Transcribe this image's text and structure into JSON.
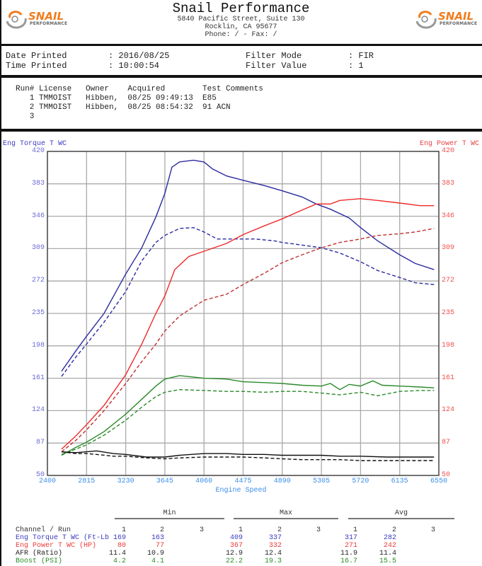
{
  "header": {
    "company": "Snail Performance",
    "address_line1": "5840 Pacific Street, Suite 130",
    "address_line2": "Rocklin, CA  95677",
    "phone_line": "Phone:  /  - Fax:  /",
    "logo_text": "SNAIL",
    "logo_sub": "PERFORMANCE"
  },
  "print_info": {
    "date_label": "Date Printed",
    "date_value": ": 2016/08/25",
    "time_label": "Time Printed",
    "time_value": ": 10:00:54",
    "filter_mode_label": "Filter Mode",
    "filter_mode_value": ": FIR",
    "filter_value_label": "Filter Value",
    "filter_value_value": ": 1"
  },
  "runs": {
    "header": "Run# License   Owner    Acquired        Test Comments",
    "rows": [
      "   1 TMMOIST   Hibben,  08/25 09:49:13  E85",
      "   2 TMMOIST   Hibben,  08/25 08:54:32  91 ACN",
      "   3"
    ]
  },
  "chart_data": {
    "type": "line",
    "title": "",
    "xlabel": "Engine Speed",
    "ylabel_left": "Eng Torque T WC",
    "ylabel_right": "Eng Power T WC",
    "xlim": [
      2400,
      6550
    ],
    "ylim": [
      50,
      420
    ],
    "x_ticks": [
      "2400",
      "2815",
      "3230",
      "3645",
      "4060",
      "4475",
      "4890",
      "5305",
      "5720",
      "6135",
      "6550"
    ],
    "y_ticks": [
      "420",
      "383",
      "346",
      "309",
      "272",
      "235",
      "198",
      "161",
      "124",
      "87",
      "50"
    ],
    "grid": true,
    "colors": {
      "torque": "#2b2ba0",
      "power": "#ee2a2a",
      "boost": "#2a8a2a",
      "afr": "#111111"
    },
    "series": [
      {
        "name": "Eng Torque T WC Run 1",
        "color": "#2b2ba0",
        "dash": false,
        "points": [
          [
            2550,
            169
          ],
          [
            2700,
            192
          ],
          [
            2815,
            209
          ],
          [
            3000,
            235
          ],
          [
            3230,
            280
          ],
          [
            3400,
            310
          ],
          [
            3550,
            345
          ],
          [
            3645,
            372
          ],
          [
            3720,
            402
          ],
          [
            3800,
            408
          ],
          [
            3950,
            410
          ],
          [
            4060,
            408
          ],
          [
            4150,
            400
          ],
          [
            4300,
            392
          ],
          [
            4475,
            387
          ],
          [
            4700,
            381
          ],
          [
            4890,
            375
          ],
          [
            5100,
            368
          ],
          [
            5250,
            360
          ],
          [
            5400,
            354
          ],
          [
            5600,
            344
          ],
          [
            5720,
            333
          ],
          [
            5900,
            318
          ],
          [
            6135,
            302
          ],
          [
            6300,
            292
          ],
          [
            6500,
            285
          ]
        ]
      },
      {
        "name": "Eng Torque T WC Run 2",
        "color": "#2b2ba0",
        "dash": true,
        "points": [
          [
            2550,
            163
          ],
          [
            2700,
            185
          ],
          [
            2815,
            200
          ],
          [
            3000,
            225
          ],
          [
            3230,
            260
          ],
          [
            3400,
            295
          ],
          [
            3550,
            316
          ],
          [
            3645,
            324
          ],
          [
            3800,
            332
          ],
          [
            3950,
            333
          ],
          [
            4060,
            328
          ],
          [
            4200,
            320
          ],
          [
            4400,
            320
          ],
          [
            4600,
            320
          ],
          [
            4800,
            318
          ],
          [
            4890,
            316
          ],
          [
            5100,
            313
          ],
          [
            5305,
            310
          ],
          [
            5500,
            304
          ],
          [
            5720,
            294
          ],
          [
            5900,
            284
          ],
          [
            6135,
            276
          ],
          [
            6300,
            270
          ],
          [
            6500,
            268
          ]
        ]
      },
      {
        "name": "Eng Power T WC Run 1",
        "color": "#ee2a2a",
        "dash": false,
        "points": [
          [
            2550,
            80
          ],
          [
            2700,
            95
          ],
          [
            2815,
            108
          ],
          [
            3000,
            130
          ],
          [
            3230,
            165
          ],
          [
            3400,
            200
          ],
          [
            3550,
            235
          ],
          [
            3645,
            255
          ],
          [
            3750,
            285
          ],
          [
            3900,
            300
          ],
          [
            4060,
            306
          ],
          [
            4300,
            315
          ],
          [
            4475,
            325
          ],
          [
            4700,
            335
          ],
          [
            4890,
            343
          ],
          [
            5100,
            353
          ],
          [
            5250,
            360
          ],
          [
            5400,
            360
          ],
          [
            5500,
            364
          ],
          [
            5720,
            366
          ],
          [
            5900,
            364
          ],
          [
            6135,
            361
          ],
          [
            6350,
            358
          ],
          [
            6500,
            358
          ]
        ]
      },
      {
        "name": "Eng Power T WC Run 2",
        "color": "#c03030",
        "dash": true,
        "points": [
          [
            2550,
            77
          ],
          [
            2700,
            90
          ],
          [
            2815,
            102
          ],
          [
            3000,
            124
          ],
          [
            3230,
            155
          ],
          [
            3400,
            180
          ],
          [
            3550,
            200
          ],
          [
            3645,
            215
          ],
          [
            3800,
            232
          ],
          [
            4060,
            250
          ],
          [
            4300,
            257
          ],
          [
            4475,
            268
          ],
          [
            4700,
            281
          ],
          [
            4890,
            293
          ],
          [
            5100,
            302
          ],
          [
            5305,
            310
          ],
          [
            5500,
            316
          ],
          [
            5720,
            320
          ],
          [
            5900,
            324
          ],
          [
            6135,
            326
          ],
          [
            6300,
            328
          ],
          [
            6500,
            332
          ]
        ]
      },
      {
        "name": "Boost Run 1",
        "color": "#2a8a2a",
        "dash": false,
        "points": [
          [
            2550,
            73
          ],
          [
            2700,
            82
          ],
          [
            2815,
            88
          ],
          [
            3000,
            100
          ],
          [
            3230,
            120
          ],
          [
            3400,
            137
          ],
          [
            3550,
            152
          ],
          [
            3645,
            160
          ],
          [
            3800,
            164
          ],
          [
            4060,
            161
          ],
          [
            4300,
            160
          ],
          [
            4475,
            157
          ],
          [
            4700,
            156
          ],
          [
            4890,
            155
          ],
          [
            5100,
            153
          ],
          [
            5305,
            152
          ],
          [
            5400,
            155
          ],
          [
            5500,
            148
          ],
          [
            5600,
            154
          ],
          [
            5720,
            152
          ],
          [
            5850,
            158
          ],
          [
            5950,
            153
          ],
          [
            6135,
            152
          ],
          [
            6350,
            151
          ],
          [
            6500,
            150
          ]
        ]
      },
      {
        "name": "Boost Run 2",
        "color": "#2a8a2a",
        "dash": true,
        "points": [
          [
            2550,
            74
          ],
          [
            2700,
            80
          ],
          [
            2815,
            85
          ],
          [
            3000,
            96
          ],
          [
            3230,
            113
          ],
          [
            3400,
            128
          ],
          [
            3550,
            140
          ],
          [
            3645,
            145
          ],
          [
            3800,
            148
          ],
          [
            4060,
            147
          ],
          [
            4300,
            146
          ],
          [
            4475,
            146
          ],
          [
            4700,
            145
          ],
          [
            4890,
            146
          ],
          [
            5100,
            146
          ],
          [
            5305,
            144
          ],
          [
            5500,
            142
          ],
          [
            5720,
            145
          ],
          [
            5900,
            141
          ],
          [
            6135,
            146
          ],
          [
            6350,
            147
          ],
          [
            6500,
            147
          ]
        ]
      },
      {
        "name": "AFR Run 1",
        "color": "#111111",
        "dash": false,
        "points": [
          [
            2550,
            77
          ],
          [
            2700,
            76
          ],
          [
            2815,
            77
          ],
          [
            2920,
            78
          ],
          [
            3100,
            75
          ],
          [
            3230,
            74
          ],
          [
            3450,
            71
          ],
          [
            3645,
            71
          ],
          [
            3800,
            73
          ],
          [
            4060,
            75
          ],
          [
            4300,
            75
          ],
          [
            4475,
            74
          ],
          [
            4700,
            74
          ],
          [
            4890,
            73
          ],
          [
            5100,
            73
          ],
          [
            5305,
            73
          ],
          [
            5500,
            72
          ],
          [
            5720,
            72
          ],
          [
            6000,
            71
          ],
          [
            6300,
            71
          ],
          [
            6500,
            71
          ]
        ]
      },
      {
        "name": "AFR Run 2",
        "color": "#111111",
        "dash": true,
        "points": [
          [
            2550,
            77
          ],
          [
            2700,
            75
          ],
          [
            2815,
            75
          ],
          [
            2920,
            74
          ],
          [
            3100,
            72
          ],
          [
            3230,
            72
          ],
          [
            3450,
            70
          ],
          [
            3645,
            69
          ],
          [
            3800,
            70
          ],
          [
            4060,
            71
          ],
          [
            4300,
            71
          ],
          [
            4475,
            71
          ],
          [
            4700,
            70
          ],
          [
            4890,
            69
          ],
          [
            5100,
            68
          ],
          [
            5305,
            68
          ],
          [
            5500,
            68
          ],
          [
            5720,
            67
          ],
          [
            6000,
            67
          ],
          [
            6300,
            67
          ],
          [
            6500,
            67
          ]
        ]
      }
    ]
  },
  "stats": {
    "groups": [
      "Min",
      "Max",
      "Avg"
    ],
    "header_label": "Channel / Run",
    "run_cols": [
      "1",
      "2",
      "3"
    ],
    "rows": [
      {
        "label": "Eng Torque T WC (Ft-Lb",
        "color": "#3b3bbf",
        "min": [
          "169",
          "163",
          ""
        ],
        "max": [
          "409",
          "337",
          ""
        ],
        "avg": [
          "317",
          "282",
          ""
        ]
      },
      {
        "label": "Eng Power T WC (HP)",
        "color": "#ee3a3a",
        "min": [
          "80",
          "77",
          ""
        ],
        "max": [
          "367",
          "332",
          ""
        ],
        "avg": [
          "271",
          "242",
          ""
        ]
      },
      {
        "label": "AFR (Ratio)",
        "color": "#222222",
        "min": [
          "11.4",
          "10.9",
          ""
        ],
        "max": [
          "12.9",
          "12.4",
          ""
        ],
        "avg": [
          "11.9",
          "11.4",
          ""
        ]
      },
      {
        "label": "Boost (PSI)",
        "color": "#2a8a2a",
        "min": [
          "4.2",
          "4.1",
          ""
        ],
        "max": [
          "22.2",
          "19.3",
          ""
        ],
        "avg": [
          "16.7",
          "15.5",
          ""
        ]
      }
    ]
  }
}
